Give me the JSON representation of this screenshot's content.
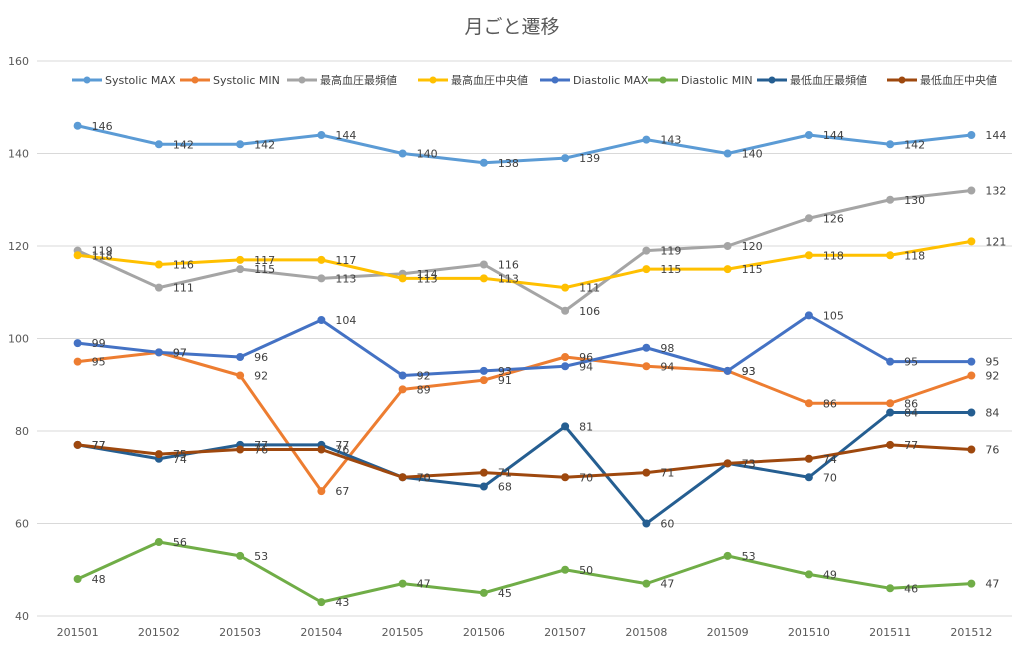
{
  "chart_data": {
    "type": "line",
    "title": "月ごと遷移",
    "xlabel": "",
    "ylabel": "",
    "categories": [
      "201501",
      "201502",
      "201503",
      "201504",
      "201505",
      "201506",
      "201507",
      "201508",
      "201509",
      "201510",
      "201511",
      "201512"
    ],
    "ylim": [
      40,
      160
    ],
    "yticks": [
      40,
      60,
      80,
      100,
      120,
      140,
      160
    ],
    "grid": true,
    "legend_position": "top",
    "series": [
      {
        "name": "Systolic MAX",
        "color": "#5B9BD5",
        "values": [
          146,
          142,
          142,
          144,
          140,
          138,
          139,
          143,
          140,
          144,
          142,
          144
        ]
      },
      {
        "name": "Systolic MIN",
        "color": "#ED7D31",
        "values": [
          95,
          97,
          92,
          67,
          89,
          91,
          96,
          94,
          93,
          86,
          86,
          92
        ]
      },
      {
        "name": "最高血圧最頻値",
        "color": "#A5A5A5",
        "values": [
          119,
          111,
          115,
          113,
          114,
          116,
          106,
          119,
          120,
          126,
          130,
          132
        ]
      },
      {
        "name": "最高血圧中央値",
        "color": "#FFC000",
        "values": [
          118,
          116,
          117,
          117,
          113,
          113,
          111,
          115,
          115,
          118,
          118,
          121
        ]
      },
      {
        "name": "Diastolic MAX",
        "color": "#4472C4",
        "values": [
          99,
          97,
          96,
          104,
          92,
          93,
          94,
          98,
          93,
          105,
          95,
          95
        ]
      },
      {
        "name": "Diastolic MIN",
        "color": "#70AD47",
        "values": [
          48,
          56,
          53,
          43,
          47,
          45,
          50,
          47,
          53,
          49,
          46,
          47
        ]
      },
      {
        "name": "最低血圧最頻値",
        "color": "#255E91",
        "values": [
          77,
          74,
          77,
          77,
          70,
          68,
          81,
          60,
          73,
          70,
          84,
          84
        ]
      },
      {
        "name": "最低血圧中央値",
        "color": "#9E480E",
        "values": [
          77,
          75,
          76,
          76,
          70,
          71,
          70,
          71,
          73,
          74,
          77,
          76
        ]
      }
    ]
  }
}
